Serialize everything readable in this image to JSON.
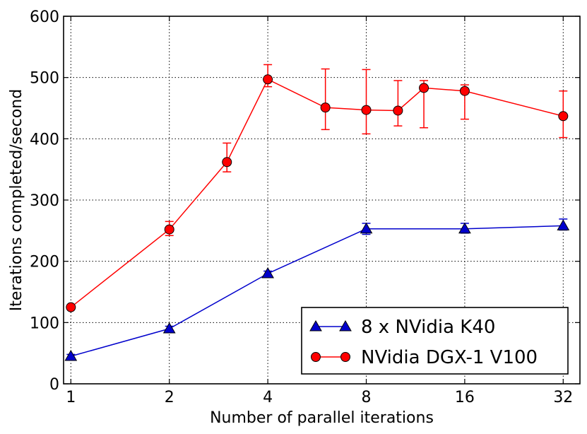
{
  "chart_data": {
    "type": "line",
    "xscale": "log2",
    "xlabel": "Number of parallel iterations",
    "ylabel": "Iterations completed/second",
    "xlim": [
      0.95,
      36
    ],
    "ylim": [
      0,
      600
    ],
    "grid": true,
    "legend_position": "lower-right",
    "xticks": [
      1,
      2,
      4,
      8,
      16,
      32
    ],
    "xtick_labels": [
      "1",
      "2",
      "4",
      "8",
      "16",
      "32"
    ],
    "yticks": [
      0,
      100,
      200,
      300,
      400,
      500,
      600
    ],
    "ytick_labels": [
      "0",
      "100",
      "200",
      "300",
      "400",
      "500",
      "600"
    ],
    "series": [
      {
        "name": "8 x NVidia K40",
        "color": "#0000cc",
        "marker": "triangle",
        "x": [
          1,
          2,
          4,
          8,
          16,
          32
        ],
        "y": [
          45,
          90,
          180,
          253,
          253,
          258
        ],
        "yerr_low": [
          3,
          4,
          4,
          9,
          7,
          7
        ],
        "yerr_high": [
          3,
          4,
          4,
          9,
          9,
          11
        ]
      },
      {
        "name": "NVidia DGX-1 V100",
        "color": "#ff0000",
        "marker": "circle",
        "x": [
          1,
          2,
          3,
          4,
          6,
          8,
          10,
          12,
          16,
          32
        ],
        "y": [
          125,
          252,
          362,
          497,
          451,
          447,
          446,
          483,
          478,
          437
        ],
        "yerr_low": [
          2,
          10,
          16,
          12,
          36,
          39,
          25,
          65,
          46,
          35
        ],
        "yerr_high": [
          2,
          13,
          31,
          24,
          63,
          66,
          49,
          12,
          10,
          41
        ]
      }
    ]
  }
}
